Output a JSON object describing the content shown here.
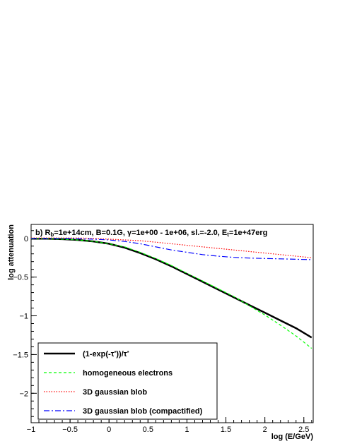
{
  "chart_data": {
    "type": "line",
    "annotation": {
      "parts": [
        {
          "t": "b) R"
        },
        {
          "t": "b",
          "sub": true
        },
        {
          "t": "=1e+14cm, B=0.1G,  "
        },
        {
          "t": "γ"
        },
        {
          "t": "=1e+00 - 1e+06, sl.=-2.0, E"
        },
        {
          "t": "t",
          "sub": true
        },
        {
          "t": "=1e+47erg"
        }
      ]
    },
    "xlabel": "log (E/GeV)",
    "ylabel": "log attenuation",
    "xlim": [
      -1,
      2.62
    ],
    "ylim": [
      -2.38,
      0.18
    ],
    "xticks": [
      -1,
      -0.5,
      0,
      0.5,
      1,
      1.5,
      2,
      2.5
    ],
    "xtick_labels": [
      "−1",
      "−0.5",
      "0",
      "0.5",
      "1",
      "1.5",
      "2",
      "2.5"
    ],
    "yticks": [
      0,
      -0.5,
      -1,
      -1.5,
      -2
    ],
    "ytick_labels": [
      "0",
      "−0.5",
      "−1",
      "−1.5",
      "−2"
    ],
    "grid": false,
    "legend_position": "bottom-left",
    "series": [
      {
        "key": "tau",
        "legend": [
          {
            "t": "(1-exp(-"
          },
          {
            "t": "τ"
          },
          {
            "t": "*",
            "sup": true
          },
          {
            "t": "))/"
          },
          {
            "t": "τ"
          },
          {
            "t": "*",
            "sup": true
          }
        ],
        "color": "#000000",
        "width": 2.5,
        "dash": "",
        "x": [
          -1,
          -0.8,
          -0.6,
          -0.4,
          -0.2,
          0,
          0.2,
          0.4,
          0.6,
          0.8,
          1,
          1.2,
          1.4,
          1.6,
          1.8,
          2,
          2.2,
          2.4,
          2.6
        ],
        "y": [
          -0.005,
          -0.005,
          -0.01,
          -0.02,
          -0.04,
          -0.07,
          -0.12,
          -0.19,
          -0.27,
          -0.36,
          -0.46,
          -0.56,
          -0.66,
          -0.76,
          -0.86,
          -0.96,
          -1.06,
          -1.16,
          -1.28
        ]
      },
      {
        "key": "homog",
        "legend": [
          {
            "t": "homogeneous electrons"
          }
        ],
        "color": "#00ff00",
        "width": 1.2,
        "dash": "4,3",
        "x": [
          -1,
          -0.8,
          -0.6,
          -0.4,
          -0.2,
          0,
          0.2,
          0.4,
          0.6,
          0.8,
          1,
          1.2,
          1.4,
          1.6,
          1.8,
          2,
          2.2,
          2.4,
          2.6
        ],
        "y": [
          -0.005,
          -0.005,
          -0.01,
          -0.02,
          -0.04,
          -0.07,
          -0.11,
          -0.18,
          -0.26,
          -0.35,
          -0.45,
          -0.55,
          -0.65,
          -0.75,
          -0.87,
          -0.99,
          -1.12,
          -1.26,
          -1.42
        ]
      },
      {
        "key": "gauss",
        "legend": [
          {
            "t": "3D gaussian blob"
          }
        ],
        "color": "#ff0000",
        "width": 1.2,
        "dash": "1.5,2",
        "x": [
          -1,
          -0.8,
          -0.6,
          -0.4,
          -0.2,
          0,
          0.2,
          0.4,
          0.6,
          0.8,
          1,
          1.2,
          1.4,
          1.6,
          1.8,
          2,
          2.2,
          2.4,
          2.6
        ],
        "y": [
          0.005,
          0.005,
          0.005,
          0.005,
          0.0,
          -0.01,
          -0.02,
          -0.03,
          -0.05,
          -0.07,
          -0.09,
          -0.11,
          -0.13,
          -0.15,
          -0.17,
          -0.19,
          -0.21,
          -0.23,
          -0.25
        ]
      },
      {
        "key": "gauss_c",
        "legend": [
          {
            "t": "3D gaussian blob (compactified)"
          }
        ],
        "color": "#0000ff",
        "width": 1.2,
        "dash": "8,3,2,3",
        "x": [
          -1,
          -0.8,
          -0.6,
          -0.4,
          -0.2,
          0,
          0.2,
          0.4,
          0.6,
          0.8,
          1,
          1.2,
          1.4,
          1.6,
          1.8,
          2,
          2.2,
          2.4,
          2.6
        ],
        "y": [
          0.0,
          0.0,
          0.0,
          -0.005,
          -0.01,
          -0.02,
          -0.04,
          -0.07,
          -0.11,
          -0.15,
          -0.18,
          -0.21,
          -0.23,
          -0.245,
          -0.255,
          -0.26,
          -0.265,
          -0.27,
          -0.275
        ]
      }
    ]
  }
}
